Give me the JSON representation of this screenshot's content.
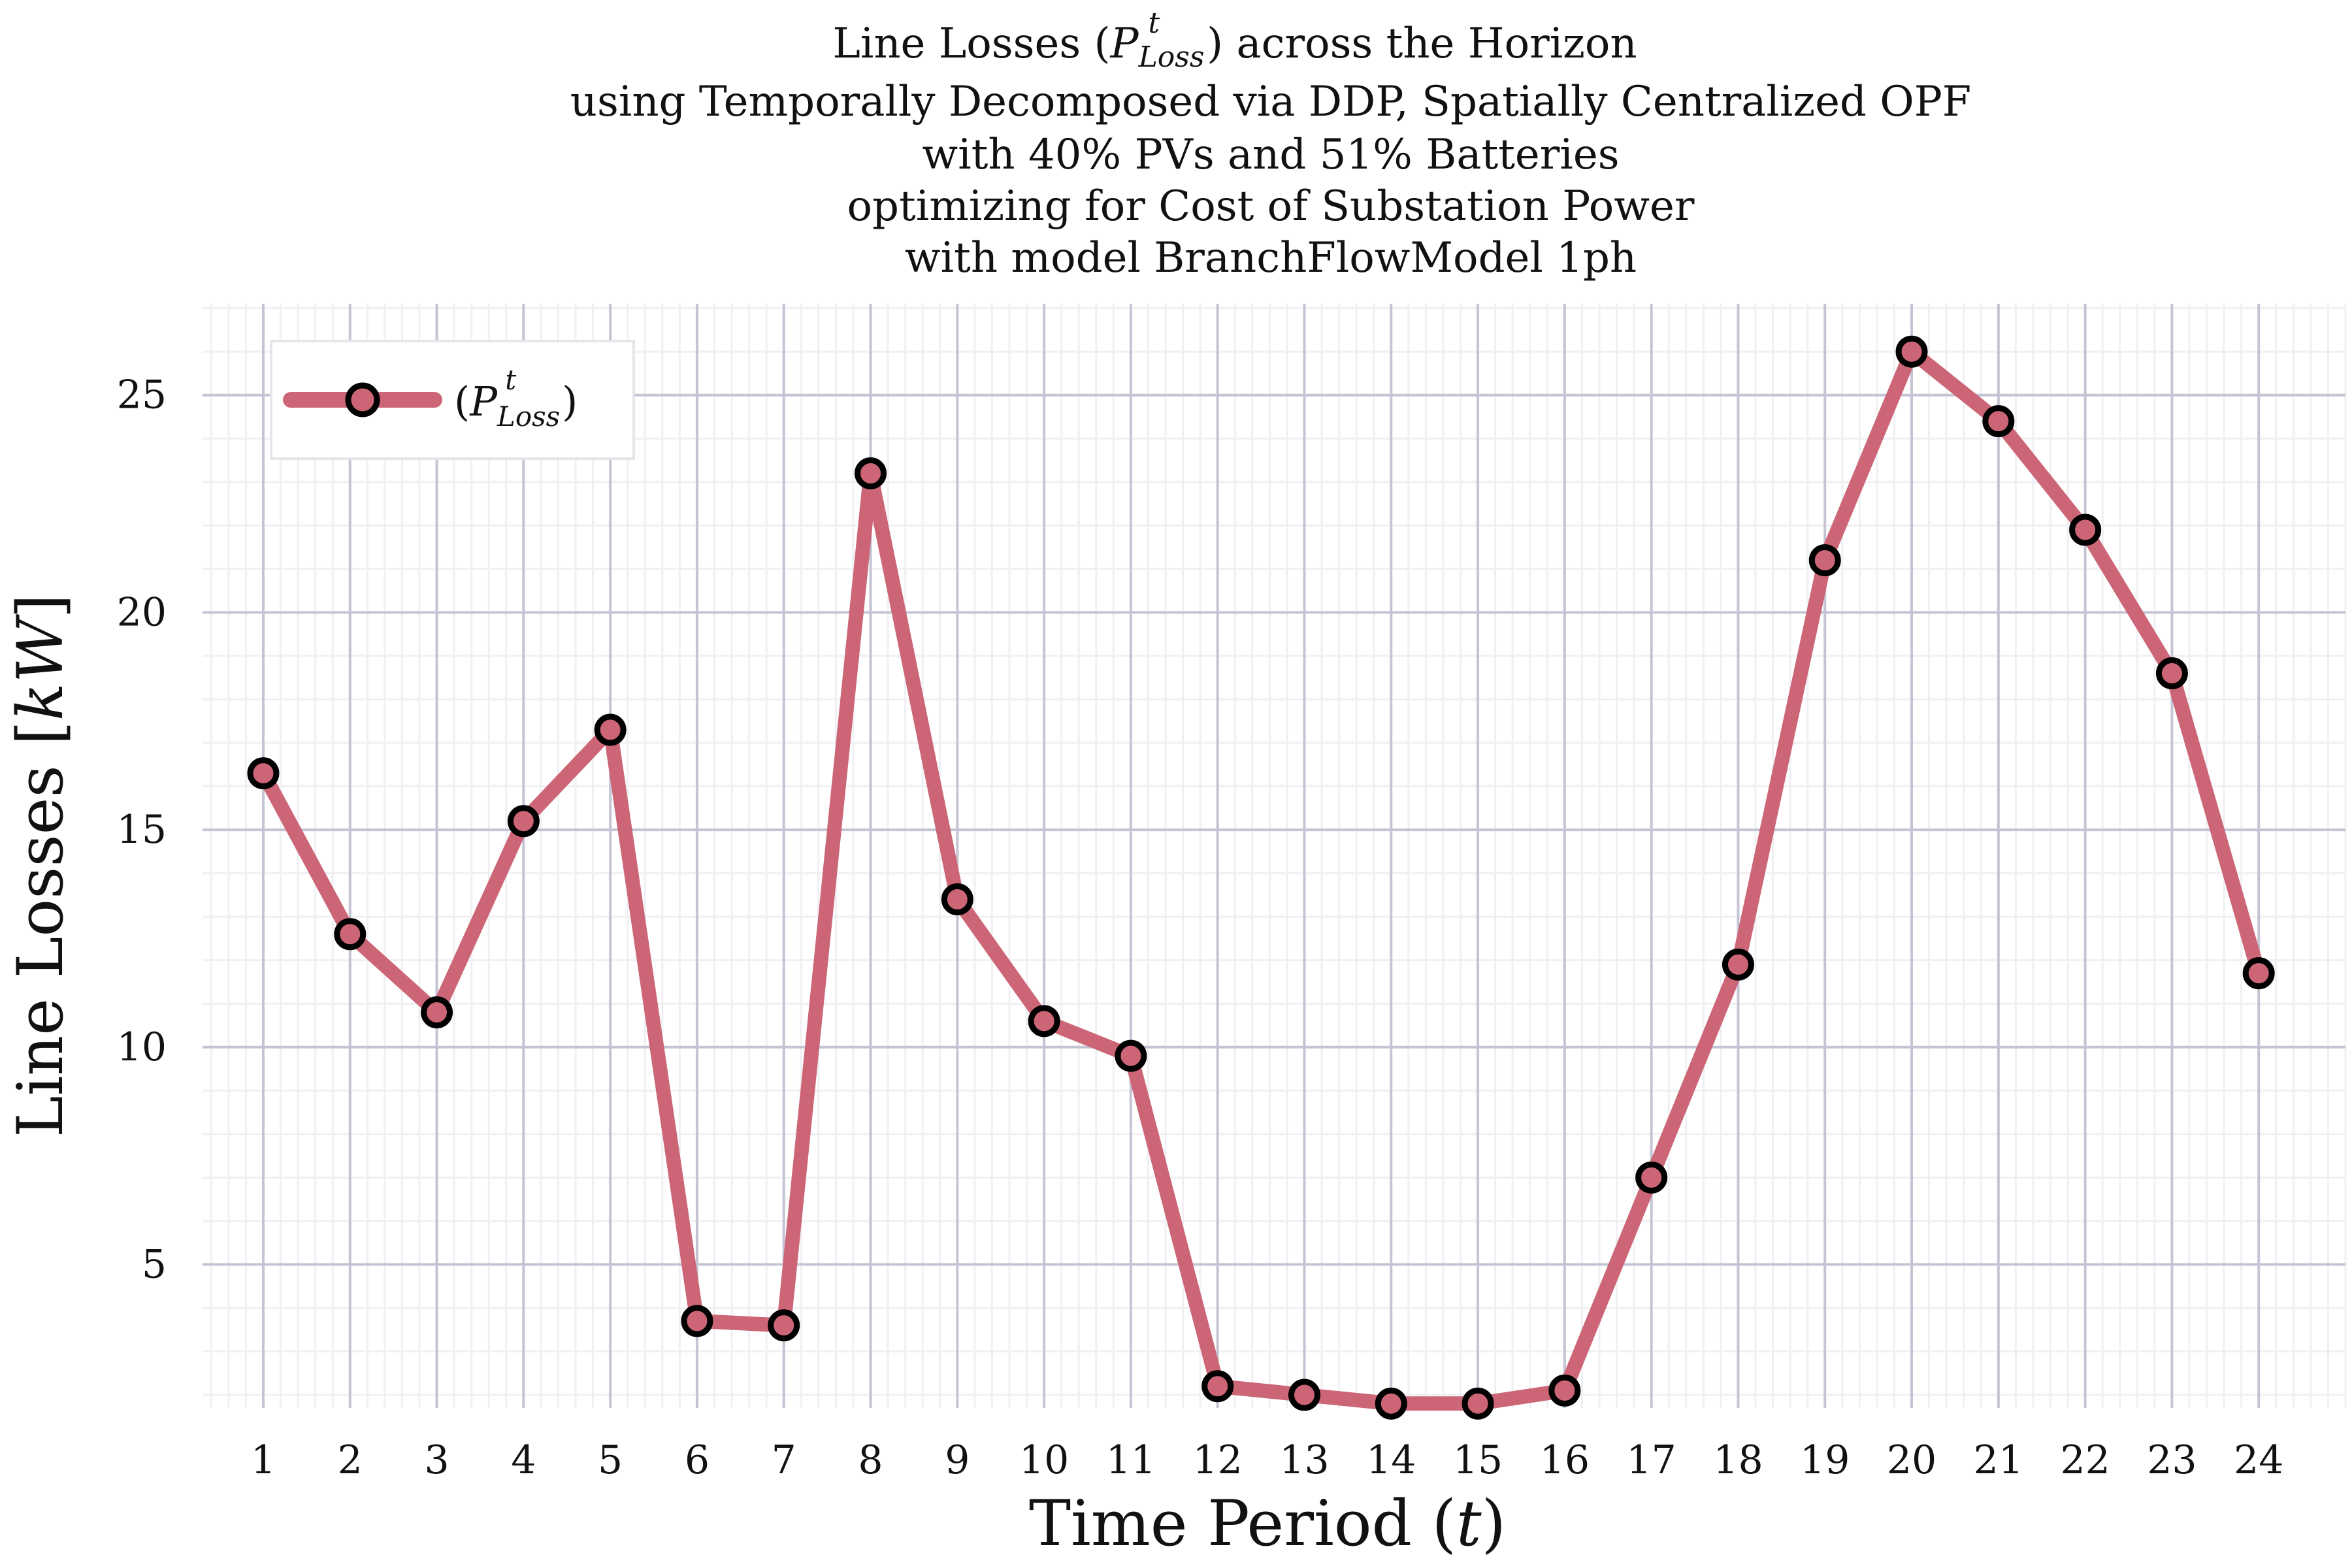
{
  "chart_data": {
    "type": "line",
    "title_lines": [
      "Line Losses (P^t_Loss) across the Horizon",
      "using Temporally Decomposed via DDP, Spatially Centralized OPF",
      "with 40% PVs and 51% Batteries",
      "optimizing for Cost of Substation Power",
      "with model BranchFlowModel 1ph"
    ],
    "xlabel": "Time Period (t)",
    "ylabel": "Line Losses [kW]",
    "x": [
      1,
      2,
      3,
      4,
      5,
      6,
      7,
      8,
      9,
      10,
      11,
      12,
      13,
      14,
      15,
      16,
      17,
      18,
      19,
      20,
      21,
      22,
      23,
      24
    ],
    "x_ticks": [
      1,
      2,
      3,
      4,
      5,
      6,
      7,
      8,
      9,
      10,
      11,
      12,
      13,
      14,
      15,
      16,
      17,
      18,
      19,
      20,
      21,
      22,
      23,
      24
    ],
    "y_ticks": [
      5,
      10,
      15,
      20,
      25
    ],
    "xlim": [
      0.3,
      25.0
    ],
    "ylim": [
      1.7,
      27.1
    ],
    "grid": true,
    "legend_position": "top-left",
    "series": [
      {
        "name": "(P^t_Loss)",
        "color": "#cc6677",
        "marker_face": "#cc6677",
        "marker_edge": "#000000",
        "values": [
          16.3,
          12.6,
          10.8,
          15.2,
          17.3,
          3.7,
          3.6,
          23.2,
          13.4,
          10.6,
          9.8,
          2.2,
          2.0,
          1.8,
          1.8,
          2.1,
          7.0,
          11.9,
          21.2,
          26.0,
          24.4,
          21.9,
          18.6,
          11.7
        ]
      }
    ]
  }
}
